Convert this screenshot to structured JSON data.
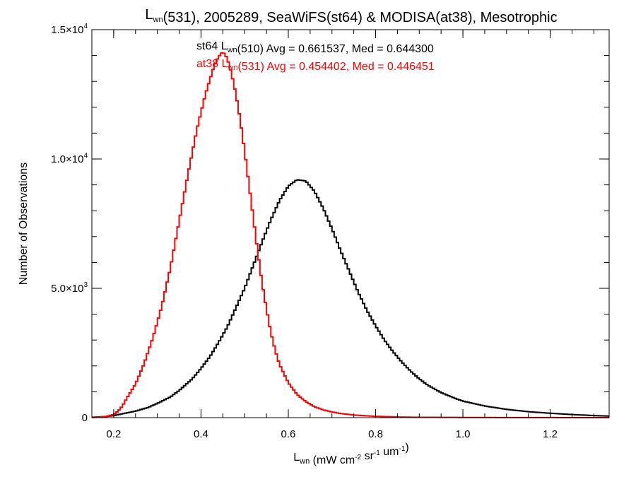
{
  "chart_data": {
    "type": "line",
    "step": true,
    "title": {
      "pre": "L",
      "sub": "wn",
      "post": "(531), 2005289, SeaWiFS(st64) & MODISA(at38), Mesotrophic"
    },
    "xlabel": {
      "pre": "L",
      "sub": "wn",
      "parts": [
        {
          "t": " (mW cm"
        },
        {
          "sup": "-2"
        },
        {
          "t": " sr"
        },
        {
          "sup": "-1"
        },
        {
          "t": " um"
        },
        {
          "sup": "-1"
        },
        {
          "t": ")"
        }
      ]
    },
    "ylabel": "Number of Observations",
    "xlim": [
      0.15,
      1.335
    ],
    "ylim": [
      0,
      15000
    ],
    "xticks": [
      {
        "v": 0.2,
        "label": "0.2"
      },
      {
        "v": 0.4,
        "label": "0.4"
      },
      {
        "v": 0.6,
        "label": "0.6"
      },
      {
        "v": 0.8,
        "label": "0.8"
      },
      {
        "v": 1.0,
        "label": "1.0"
      },
      {
        "v": 1.2,
        "label": "1.2"
      }
    ],
    "yticks": [
      {
        "v": 0,
        "mant": "0",
        "exp": ""
      },
      {
        "v": 5000,
        "mant": "5.0×10",
        "exp": "3"
      },
      {
        "v": 10000,
        "mant": "1.0×10",
        "exp": "4"
      },
      {
        "v": 15000,
        "mant": "1.5×10",
        "exp": "4"
      }
    ],
    "annotations": [
      {
        "color": "#000000",
        "parts": [
          {
            "t": "st64 L"
          },
          {
            "sub": "wn"
          },
          {
            "t": "(510) Avg = 0.661537, Med = 0.644300"
          }
        ]
      },
      {
        "color": "#ff0000",
        "parts": [
          {
            "t": "at38 L"
          },
          {
            "sub": "wn"
          },
          {
            "t": "(531) Avg = 0.454402, Med = 0.446451"
          }
        ]
      }
    ],
    "series": [
      {
        "color": "#000000",
        "x": [
          0.15,
          0.18,
          0.2,
          0.22,
          0.25,
          0.28,
          0.3,
          0.33,
          0.35,
          0.38,
          0.4,
          0.42,
          0.44,
          0.46,
          0.48,
          0.5,
          0.52,
          0.54,
          0.56,
          0.58,
          0.6,
          0.62,
          0.64,
          0.66,
          0.68,
          0.7,
          0.72,
          0.74,
          0.76,
          0.78,
          0.8,
          0.82,
          0.84,
          0.86,
          0.88,
          0.9,
          0.92,
          0.95,
          0.98,
          1.0,
          1.05,
          1.1,
          1.15,
          1.2,
          1.25,
          1.3,
          1.335
        ],
        "y": [
          10,
          40,
          80,
          150,
          250,
          400,
          550,
          800,
          1050,
          1500,
          1900,
          2350,
          2900,
          3500,
          4250,
          5000,
          5900,
          6800,
          7650,
          8400,
          8950,
          9200,
          9150,
          8750,
          8100,
          7300,
          6450,
          5650,
          4850,
          4150,
          3550,
          3000,
          2550,
          2150,
          1800,
          1500,
          1250,
          970,
          760,
          640,
          450,
          320,
          230,
          170,
          120,
          80,
          60
        ]
      },
      {
        "color": "#ff0000",
        "x": [
          0.15,
          0.18,
          0.2,
          0.21,
          0.22,
          0.23,
          0.25,
          0.27,
          0.29,
          0.31,
          0.33,
          0.35,
          0.37,
          0.39,
          0.41,
          0.43,
          0.44,
          0.45,
          0.46,
          0.47,
          0.48,
          0.49,
          0.5,
          0.51,
          0.52,
          0.53,
          0.54,
          0.55,
          0.56,
          0.57,
          0.58,
          0.6,
          0.62,
          0.64,
          0.66,
          0.68,
          0.7,
          0.72,
          0.75,
          0.8,
          0.85,
          0.9,
          1.0,
          1.1,
          1.2,
          1.335
        ],
        "y": [
          0,
          30,
          120,
          250,
          450,
          750,
          1300,
          2100,
          3100,
          4300,
          5800,
          7600,
          9400,
          11100,
          12500,
          13600,
          13950,
          14150,
          13900,
          13300,
          12500,
          11500,
          10300,
          9000,
          7700,
          6400,
          5200,
          4200,
          3300,
          2600,
          2050,
          1350,
          900,
          620,
          420,
          300,
          220,
          160,
          100,
          50,
          25,
          15,
          8,
          4,
          2,
          0
        ]
      }
    ]
  }
}
